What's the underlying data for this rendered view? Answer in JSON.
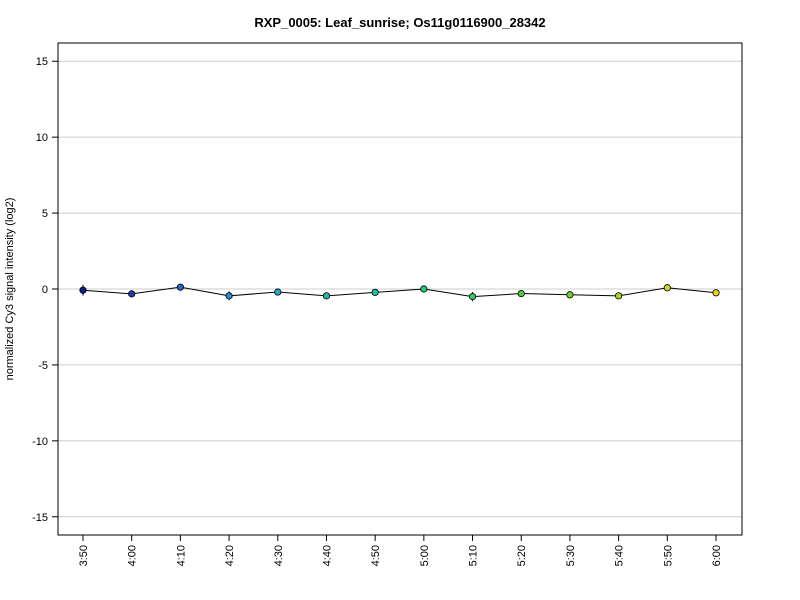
{
  "chart_data": {
    "type": "line",
    "title": "RXP_0005: Leaf_sunrise; Os11g0116900_28342",
    "xlabel": "",
    "ylabel": "normalized Cy3 signal intensity (log2)",
    "ylim": [
      -16.2,
      16.2
    ],
    "yticks": [
      15,
      10,
      5,
      0,
      -5,
      -10,
      -15
    ],
    "ytick_labels": [
      "15",
      "10",
      "5",
      "0",
      "-5",
      "-10",
      "-15"
    ],
    "grid": "horizontal",
    "categories": [
      "3:50",
      "4:00",
      "4:10",
      "4:20",
      "4:30",
      "4:40",
      "4:50",
      "5:00",
      "5:10",
      "5:20",
      "5:30",
      "5:40",
      "5:50",
      "6:00"
    ],
    "values": [
      -0.08,
      -0.32,
      0.12,
      -0.45,
      -0.2,
      -0.45,
      -0.22,
      0.0,
      -0.5,
      -0.3,
      -0.38,
      -0.45,
      0.08,
      -0.25
    ],
    "error": [
      0.35,
      0.1,
      0.12,
      0.3,
      0.12,
      0.1,
      0.12,
      0.08,
      0.3,
      0.12,
      0.12,
      0.1,
      0.1,
      0.12
    ],
    "point_colors": [
      "#0a1c8a",
      "#1e3aa8",
      "#2a62c8",
      "#2d86d6",
      "#22a8c8",
      "#1eb8b2",
      "#1ec29c",
      "#22c880",
      "#2ec864",
      "#4ccc44",
      "#74d030",
      "#a0d424",
      "#ccd420",
      "#e8d418"
    ],
    "line_color": "#000000",
    "grid_color": "#cccccc"
  }
}
